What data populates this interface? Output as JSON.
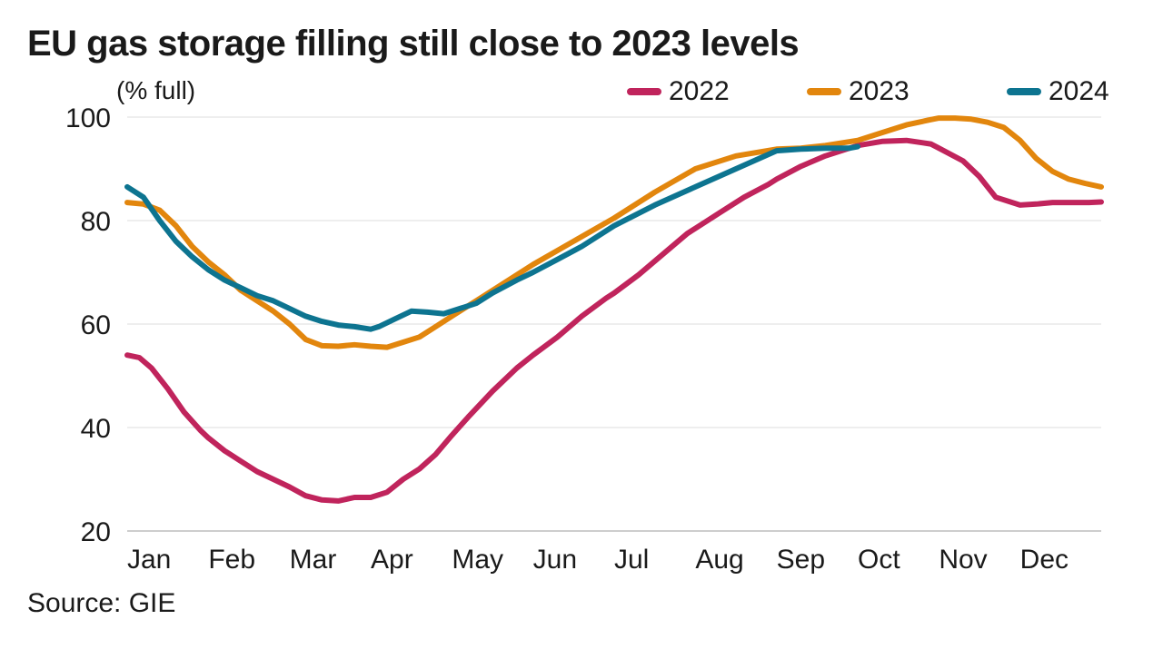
{
  "title": "EU gas storage filling still close to 2023 levels",
  "source": "Source: GIE",
  "chart_data": {
    "type": "line",
    "title": "EU gas storage filling still close to 2023 levels",
    "ylabel": "(% full)",
    "xlabel": "",
    "ylim": [
      20,
      100
    ],
    "xlim": [
      0,
      12
    ],
    "grid": true,
    "legend_position": "top-right",
    "yticks": [
      20,
      40,
      60,
      80,
      100
    ],
    "categories": [
      "Jan",
      "Feb",
      "Mar",
      "Apr",
      "May",
      "Jun",
      "Jul",
      "Aug",
      "Sep",
      "Oct",
      "Nov",
      "Dec"
    ],
    "series": [
      {
        "name": "2022",
        "color": "#c0245c",
        "x": [
          0,
          0.15,
          0.3,
          0.5,
          0.7,
          0.9,
          1.0,
          1.2,
          1.4,
          1.6,
          1.8,
          2.0,
          2.2,
          2.4,
          2.6,
          2.8,
          3.0,
          3.2,
          3.4,
          3.6,
          3.8,
          4.0,
          4.2,
          4.5,
          4.8,
          5.0,
          5.3,
          5.6,
          5.9,
          6.0,
          6.3,
          6.6,
          6.9,
          7.0,
          7.3,
          7.6,
          7.9,
          8.0,
          8.3,
          8.6,
          8.9,
          9.0,
          9.3,
          9.6,
          9.9,
          10.0,
          10.3,
          10.5,
          10.7,
          11.0,
          11.2,
          11.4,
          11.55,
          11.7,
          11.85,
          12.0
        ],
        "values": [
          54,
          53.5,
          51.5,
          47.5,
          43,
          39.5,
          38,
          35.5,
          33.5,
          31.5,
          30,
          28.5,
          26.8,
          26,
          25.8,
          26.5,
          26.5,
          27.5,
          30,
          32,
          34.8,
          38.5,
          42,
          47,
          51.5,
          54,
          57.5,
          61.5,
          65,
          66,
          69.5,
          73.5,
          77.5,
          78.5,
          81.5,
          84.5,
          87,
          88,
          90.5,
          92.5,
          94,
          94.5,
          95.3,
          95.5,
          94.8,
          94,
          91.5,
          88.5,
          84.5,
          83,
          83.2,
          83.5,
          83.5,
          83.5,
          83.5,
          83.6
        ]
      },
      {
        "name": "2023",
        "color": "#e2860d",
        "x": [
          0,
          0.2,
          0.4,
          0.6,
          0.8,
          1.0,
          1.2,
          1.4,
          1.6,
          1.8,
          2.0,
          2.2,
          2.4,
          2.6,
          2.8,
          3.0,
          3.2,
          3.4,
          3.6,
          3.8,
          4.0,
          4.3,
          4.6,
          5.0,
          5.5,
          6.0,
          6.5,
          7.0,
          7.5,
          8.0,
          8.3,
          8.6,
          9.0,
          9.3,
          9.6,
          9.9,
          10.0,
          10.2,
          10.4,
          10.6,
          10.8,
          11.0,
          11.2,
          11.4,
          11.6,
          11.8,
          12.0
        ],
        "values": [
          83.5,
          83.2,
          82,
          79,
          75,
          72,
          69.5,
          66.5,
          64.5,
          62.5,
          60,
          57,
          55.8,
          55.7,
          56,
          55.7,
          55.5,
          56.5,
          57.5,
          59.5,
          61.5,
          64.5,
          67.5,
          71.5,
          76,
          80.5,
          85.5,
          90,
          92.5,
          93.8,
          94,
          94.5,
          95.5,
          97,
          98.5,
          99.5,
          99.8,
          99.8,
          99.6,
          99,
          98,
          95.5,
          92,
          89.5,
          88,
          87.2,
          86.5
        ]
      },
      {
        "name": "2024",
        "color": "#0d7490",
        "x": [
          0,
          0.2,
          0.4,
          0.6,
          0.8,
          1.0,
          1.2,
          1.4,
          1.6,
          1.8,
          2.0,
          2.2,
          2.4,
          2.6,
          2.8,
          3.0,
          3.1,
          3.3,
          3.5,
          3.7,
          3.9,
          4.1,
          4.3,
          4.5,
          4.8,
          5.0,
          5.3,
          5.6,
          6.0,
          6.5,
          7.0,
          7.5,
          8.0,
          8.3,
          8.6,
          8.9,
          9.0
        ],
        "values": [
          86.5,
          84.5,
          80,
          76,
          73,
          70.5,
          68.5,
          67,
          65.5,
          64.5,
          63,
          61.5,
          60.5,
          59.8,
          59.5,
          59,
          59.5,
          61,
          62.5,
          62.3,
          62,
          63,
          64,
          66,
          68.5,
          70,
          72.5,
          75,
          79,
          83,
          86.5,
          90,
          93.5,
          93.8,
          94,
          94,
          94.3
        ]
      }
    ]
  }
}
